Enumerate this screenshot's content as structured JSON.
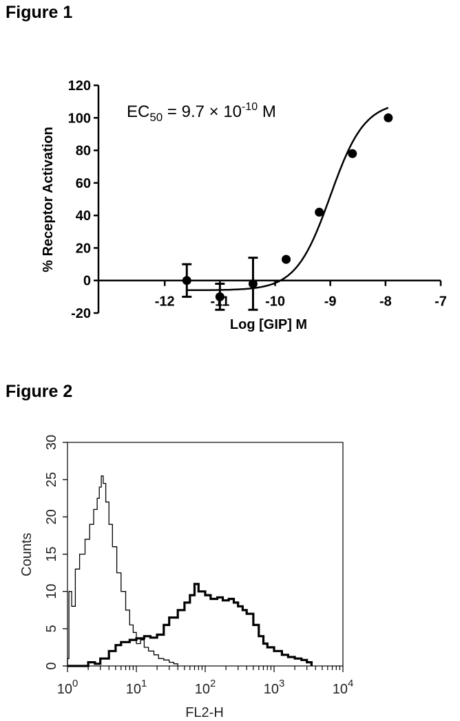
{
  "figures": {
    "fig1_title": "Figure 1",
    "fig2_title": "Figure 2"
  },
  "chart_data": [
    {
      "type": "scatter",
      "title": "",
      "xlabel": "Log [GIP] M",
      "ylabel": "% Receptor Activation",
      "annotation": {
        "prefix": "EC",
        "sub": "50",
        "mid": " = 9.7 × 10",
        "sup": "-10",
        "suffix": " M"
      },
      "xlim": [
        -13.2,
        -7
      ],
      "ylim": [
        -20,
        120
      ],
      "x_ticks": [
        -12,
        -11,
        -10,
        -9,
        -8,
        -7
      ],
      "x_tick_labels": [
        "-12",
        "-11",
        "-10",
        "-9",
        "-8",
        "-7"
      ],
      "y_ticks": [
        -20,
        0,
        20,
        40,
        60,
        80,
        100,
        120
      ],
      "y_tick_labels": [
        "-20",
        "0",
        "20",
        "40",
        "60",
        "80",
        "100",
        "120"
      ],
      "points": [
        {
          "x": -11.6,
          "y": 0,
          "err": 10
        },
        {
          "x": -11.0,
          "y": -10,
          "err": 8
        },
        {
          "x": -10.4,
          "y": -2,
          "err": 16
        },
        {
          "x": -9.8,
          "y": 13
        },
        {
          "x": -9.2,
          "y": 42
        },
        {
          "x": -8.6,
          "y": 78
        },
        {
          "x": -7.95,
          "y": 100
        }
      ],
      "fit": {
        "bottom": -6,
        "top": 110,
        "logEC50": -9.0,
        "hill": 1.4,
        "x_range": [
          -11.6,
          -7.95
        ]
      },
      "color": "#000000"
    },
    {
      "type": "line",
      "title": "",
      "xlabel": "FL2-H",
      "ylabel": "Counts",
      "x_scale": "log",
      "xlim": [
        1,
        10000
      ],
      "ylim": [
        0,
        30
      ],
      "x_ticks": [
        {
          "base": "10",
          "exp": "0"
        },
        {
          "base": "10",
          "exp": "1"
        },
        {
          "base": "10",
          "exp": "2"
        },
        {
          "base": "10",
          "exp": "3"
        },
        {
          "base": "10",
          "exp": "4"
        }
      ],
      "y_ticks": [
        0,
        5,
        10,
        15,
        20,
        25,
        30
      ],
      "y_tick_labels": [
        "0",
        "5",
        "10",
        "15",
        "20",
        "25",
        "30"
      ],
      "series": [
        {
          "style": "thin",
          "x": [
            1.0,
            1.05,
            1.15,
            1.3,
            1.5,
            1.8,
            2.1,
            2.4,
            2.7,
            2.9,
            3.1,
            3.3,
            3.6,
            4.0,
            4.5,
            5.2,
            6.0,
            7.0,
            8.0,
            9.0,
            10.0,
            11.5,
            13,
            15,
            18,
            21,
            25,
            30,
            35,
            40
          ],
          "y": [
            1,
            10,
            8,
            13,
            15,
            17,
            19,
            21,
            22.5,
            24,
            25.5,
            24.5,
            22,
            19,
            16,
            12.5,
            10,
            7.5,
            5.5,
            4.5,
            3,
            3.5,
            2.5,
            2,
            1.5,
            1,
            0.8,
            0.5,
            0.3,
            0
          ]
        },
        {
          "style": "thick",
          "x": [
            1.0,
            1.5,
            2.0,
            2.5,
            3.0,
            4.0,
            5.0,
            6.0,
            8.0,
            10,
            13,
            16,
            20,
            25,
            30,
            40,
            50,
            60,
            70,
            80,
            100,
            120,
            150,
            180,
            220,
            260,
            300,
            350,
            400,
            500,
            600,
            700,
            800,
            1000,
            1300,
            1600,
            2000,
            2500,
            3000,
            3500
          ],
          "y": [
            0,
            0,
            0.5,
            0.3,
            1,
            2,
            2.8,
            3.2,
            3.5,
            3.7,
            4,
            3.8,
            4.2,
            5.5,
            6.5,
            7.5,
            8.5,
            9.5,
            11,
            10,
            9.5,
            9,
            9.2,
            8.8,
            9,
            8.5,
            8,
            7.5,
            7,
            5.5,
            4,
            3,
            2.5,
            2,
            1.5,
            1.2,
            1,
            0.8,
            0.5,
            0
          ]
        }
      ]
    }
  ]
}
